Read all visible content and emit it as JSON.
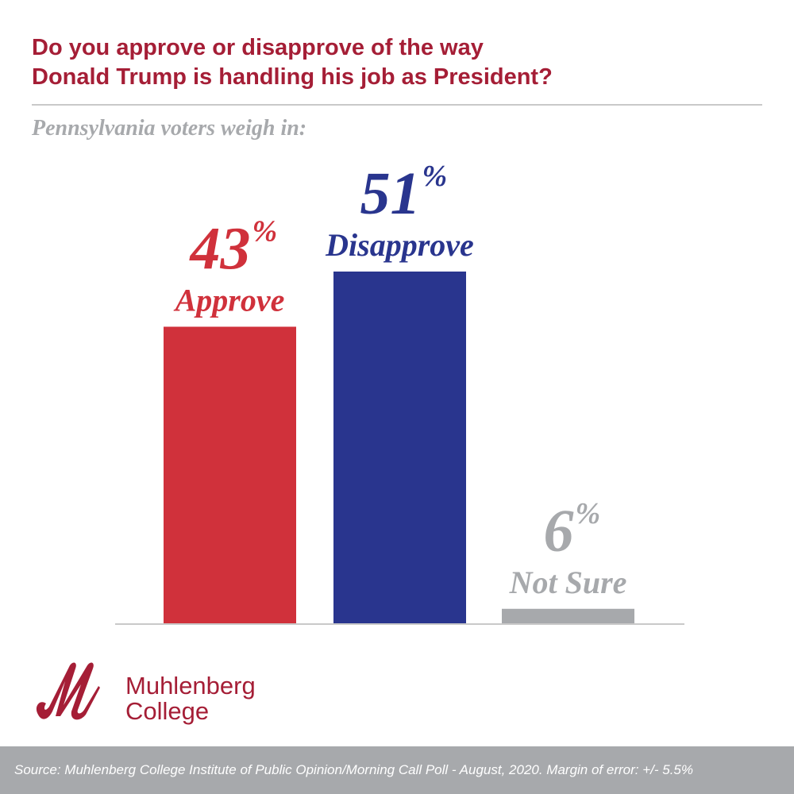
{
  "title_line1": "Do you approve or disapprove of the way",
  "title_line2": "Donald Trump is handling his job as President?",
  "subtitle": "Pennsylvania voters weigh in:",
  "chart_data": {
    "type": "bar",
    "categories": [
      "Approve",
      "Disapprove",
      "Not Sure"
    ],
    "values": [
      43,
      51,
      6
    ],
    "unit": "%",
    "colors": [
      "#d0313b",
      "#29358e",
      "#a7a9ac"
    ],
    "ylim": [
      0,
      51
    ],
    "grid": false
  },
  "logo": {
    "line1": "Muhlenberg",
    "line2": "College",
    "color": "#a51e36"
  },
  "footer": "Source: Muhlenberg College Institute of Public Opinion/Morning Call Poll - August, 2020. Margin of error: +/- 5.5%"
}
